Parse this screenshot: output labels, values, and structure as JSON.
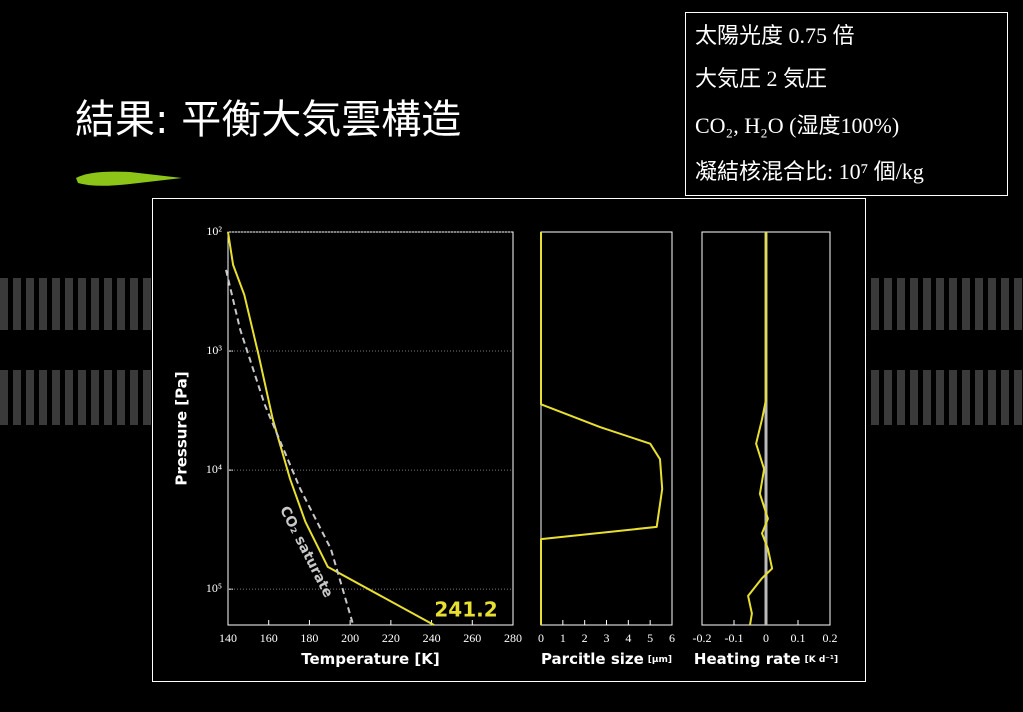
{
  "title": "結果: 平衡大気雲構造",
  "conditions": [
    "太陽光度 0.75 倍",
    "大気圧 2 気圧",
    "CO₂, H₂O (湿度100%)",
    "凝結核混合比: 10⁷ 個/kg"
  ],
  "chart_data": [
    {
      "type": "line",
      "xlabel": "Temperature [K]",
      "ylabel": "Pressure [Pa]",
      "xlim": [
        140,
        280
      ],
      "xticks": [
        140,
        160,
        180,
        200,
        220,
        240,
        260,
        280
      ],
      "ylim": [
        100,
        200000
      ],
      "ylog": true,
      "y_inverted": true,
      "grid": true,
      "yticks": [
        {
          "value": 100,
          "label": "10²"
        },
        {
          "value": 1000,
          "label": "10³"
        },
        {
          "value": 10000,
          "label": "10⁴"
        },
        {
          "value": 100000,
          "label": "10⁵"
        }
      ],
      "series": [
        {
          "color": "#e8e030",
          "dash": false,
          "x": [
            140,
            142.5,
            148,
            155,
            162,
            170.5,
            178,
            189,
            241.2
          ],
          "values": [
            100,
            189,
            337,
            1070,
            3740,
            11900,
            27200,
            65000,
            200000
          ]
        },
        {
          "color": "#c8c8c8",
          "dash": true,
          "x": [
            139,
            146,
            158,
            175.5,
            190.5,
            201.5
          ],
          "values": [
            208,
            660,
            2800,
            14400,
            45700,
            200000
          ]
        }
      ],
      "annotations": [
        {
          "text": "241.2",
          "color": "#e8e030"
        },
        {
          "text": "CO₂ saturate",
          "color": "#c8c8c8"
        }
      ]
    },
    {
      "type": "line",
      "xlabel": "Parcitle size",
      "xlabel_unit": "[μm]",
      "xlim": [
        0,
        6
      ],
      "xticks": [
        0,
        1,
        2,
        3,
        4,
        5,
        6
      ],
      "ylim": [
        100,
        200000
      ],
      "ylog": true,
      "y_inverted": true,
      "series": [
        {
          "color": "#e8e030",
          "dash": false,
          "x": [
            0,
            0,
            2.7,
            5.0,
            5.45,
            5.55,
            5.3,
            0,
            0
          ],
          "values": [
            100,
            2800,
            4350,
            6000,
            8100,
            14400,
            30000,
            38000,
            200000
          ]
        }
      ]
    },
    {
      "type": "line",
      "xlabel": "Heating rate",
      "xlabel_unit": "[K d⁻¹]",
      "xlim": [
        -0.2,
        0.2
      ],
      "xticks": [
        -0.2,
        -0.1,
        0,
        0.1,
        0.2
      ],
      "ylim": [
        100,
        200000
      ],
      "ylog": true,
      "y_inverted": true,
      "zero_line": {
        "value": 0,
        "color": "#bbbbbb"
      },
      "series": [
        {
          "color": "#e8e030",
          "dash": false,
          "x": [
            0,
            0,
            -0.0125,
            -0.031,
            -0.006,
            -0.019,
            0.006,
            -0.0125,
            0.006,
            0.019,
            -0.0125,
            -0.056,
            -0.044,
            -0.05
          ],
          "values": [
            100,
            2560,
            3740,
            6000,
            9800,
            15800,
            25600,
            34000,
            45700,
            67000,
            81000,
            114000,
            160000,
            200000
          ]
        }
      ]
    }
  ]
}
